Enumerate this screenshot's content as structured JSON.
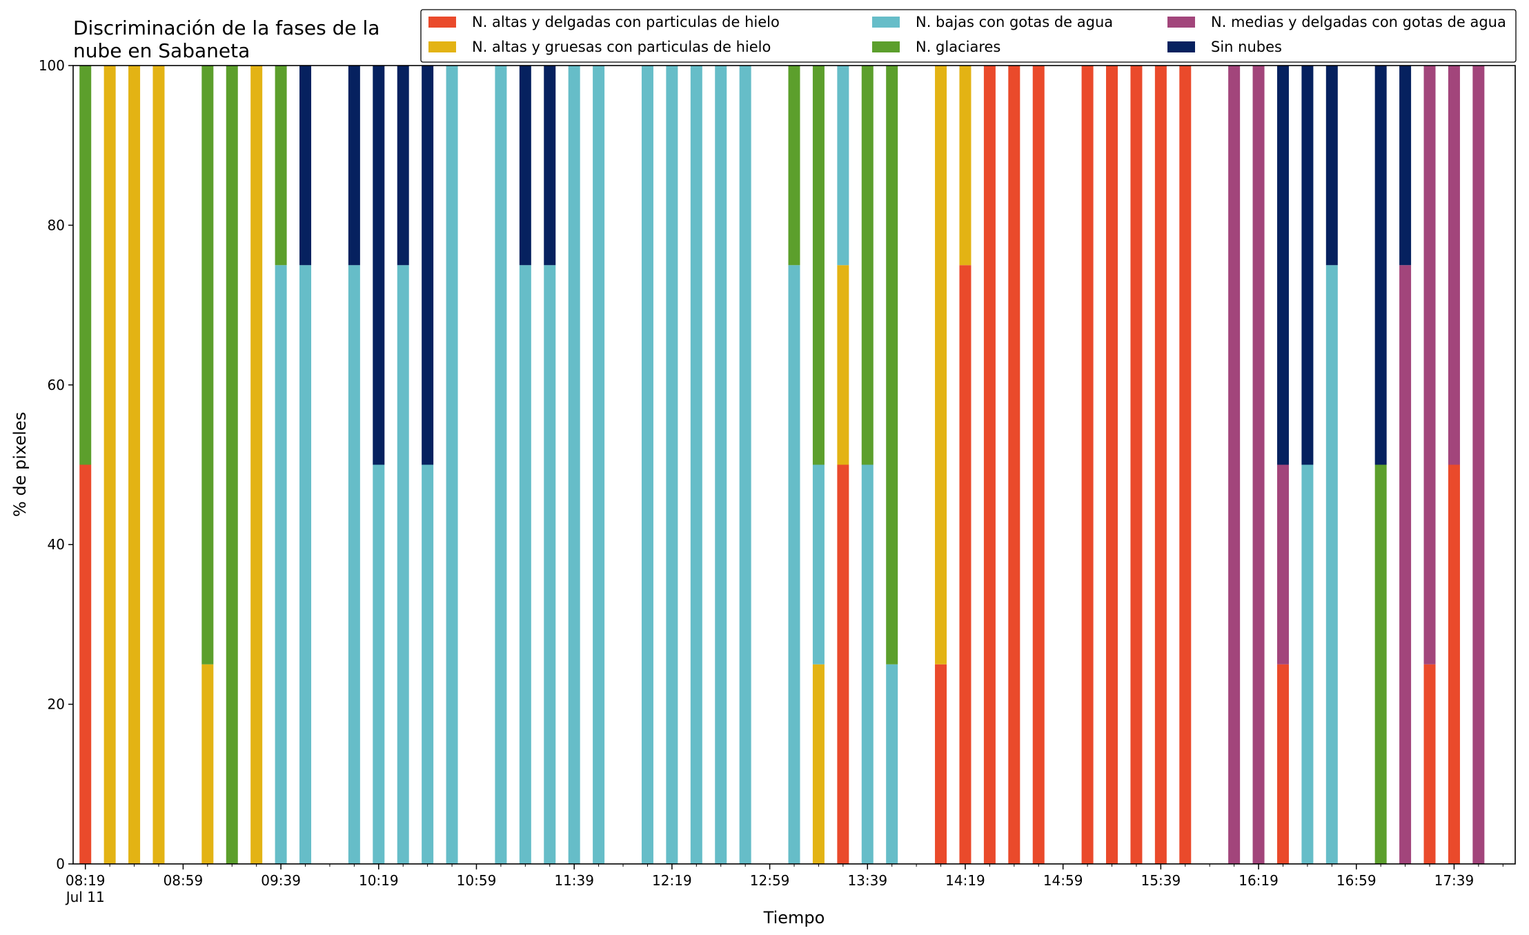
{
  "colors": {
    "N. altas y delgadas con particulas de hielo": "#ea4a2b",
    "N. altas y gruesas con particulas de hielo": "#e3b314",
    "N. bajas con gotas de agua": "#66bdc8",
    "N. glaciares": "#5c9f2c",
    "N. medias y delgadas con gotas de agua": "#a2457b",
    "Sin nubes": "#06215f"
  },
  "chart_data": {
    "type": "bar",
    "stacked": true,
    "title": "Discriminación de la fases de la\nnube en Sabaneta",
    "xlabel": "Tiempo",
    "ylabel": "% de pixeles",
    "ylim": [
      0,
      100
    ],
    "yticks": [
      0,
      20,
      40,
      60,
      80,
      100
    ],
    "xlim": [
      "08:14",
      "18:04"
    ],
    "xticks": [
      "08:19",
      "08:59",
      "09:39",
      "10:19",
      "10:59",
      "11:39",
      "12:19",
      "12:59",
      "13:39",
      "14:19",
      "14:59",
      "15:39",
      "16:19",
      "16:59",
      "17:39"
    ],
    "xtick_labels": [
      "08:19\nJul 11",
      "08:59",
      "09:39",
      "10:19",
      "10:59",
      "11:39",
      "12:19",
      "12:59",
      "13:39",
      "14:19",
      "14:59",
      "15:39",
      "16:19",
      "16:59",
      "17:39"
    ],
    "x_minor_tick_step_minutes": 10,
    "legend": {
      "placement": "top-right",
      "columns": 3
    },
    "grid": false,
    "series_order": [
      "N. altas y delgadas con particulas de hielo",
      "N. altas y gruesas con particulas de hielo",
      "N. bajas con gotas de agua",
      "N. glaciares",
      "N. medias y delgadas con gotas de agua",
      "Sin nubes"
    ],
    "x": [
      "08:19",
      "08:29",
      "08:39",
      "08:49",
      "09:09",
      "09:19",
      "09:29",
      "09:39",
      "09:49",
      "10:09",
      "10:19",
      "10:29",
      "10:39",
      "10:49",
      "11:09",
      "11:19",
      "11:29",
      "11:39",
      "11:49",
      "12:09",
      "12:19",
      "12:29",
      "12:39",
      "12:49",
      "13:09",
      "13:19",
      "13:29",
      "13:39",
      "13:49",
      "14:09",
      "14:19",
      "14:29",
      "14:39",
      "14:49",
      "15:09",
      "15:19",
      "15:29",
      "15:39",
      "15:49",
      "16:09",
      "16:19",
      "16:29",
      "16:39",
      "16:49",
      "17:09",
      "17:19",
      "17:29",
      "17:39",
      "17:49"
    ],
    "series": [
      {
        "name": "N. altas y delgadas con particulas de hielo",
        "values": [
          50,
          0,
          0,
          0,
          0,
          0,
          0,
          0,
          0,
          0,
          0,
          0,
          0,
          0,
          0,
          0,
          0,
          0,
          0,
          0,
          0,
          0,
          0,
          0,
          0,
          0,
          50,
          0,
          0,
          25,
          75,
          100,
          100,
          100,
          100,
          100,
          100,
          100,
          100,
          0,
          0,
          25,
          0,
          0,
          0,
          0,
          25,
          50,
          0
        ]
      },
      {
        "name": "N. altas y gruesas con particulas de hielo",
        "values": [
          0,
          100,
          100,
          100,
          25,
          0,
          100,
          0,
          0,
          0,
          0,
          0,
          0,
          0,
          0,
          0,
          0,
          0,
          0,
          0,
          0,
          0,
          0,
          0,
          0,
          25,
          25,
          0,
          0,
          75,
          25,
          0,
          0,
          0,
          0,
          0,
          0,
          0,
          0,
          0,
          0,
          0,
          0,
          0,
          0,
          0,
          0,
          0,
          0
        ]
      },
      {
        "name": "N. bajas con gotas de agua",
        "values": [
          0,
          0,
          0,
          0,
          0,
          0,
          0,
          75,
          75,
          75,
          50,
          75,
          50,
          100,
          100,
          75,
          75,
          100,
          100,
          100,
          100,
          100,
          100,
          100,
          75,
          25,
          25,
          50,
          25,
          0,
          0,
          0,
          0,
          0,
          0,
          0,
          0,
          0,
          0,
          0,
          0,
          0,
          50,
          75,
          0,
          0,
          0,
          0,
          0
        ]
      },
      {
        "name": "N. glaciares",
        "values": [
          50,
          0,
          0,
          0,
          75,
          100,
          0,
          25,
          0,
          0,
          0,
          0,
          0,
          0,
          0,
          0,
          0,
          0,
          0,
          0,
          0,
          0,
          0,
          0,
          25,
          50,
          0,
          50,
          75,
          0,
          0,
          0,
          0,
          0,
          0,
          0,
          0,
          0,
          0,
          0,
          0,
          0,
          0,
          0,
          50,
          0,
          0,
          0,
          0
        ]
      },
      {
        "name": "N. medias y delgadas con gotas de agua",
        "values": [
          0,
          0,
          0,
          0,
          0,
          0,
          0,
          0,
          0,
          0,
          0,
          0,
          0,
          0,
          0,
          0,
          0,
          0,
          0,
          0,
          0,
          0,
          0,
          0,
          0,
          0,
          0,
          0,
          0,
          0,
          0,
          0,
          0,
          0,
          0,
          0,
          0,
          0,
          0,
          100,
          100,
          25,
          0,
          0,
          0,
          75,
          75,
          50,
          100
        ]
      },
      {
        "name": "Sin nubes",
        "values": [
          0,
          0,
          0,
          0,
          0,
          0,
          0,
          0,
          25,
          25,
          50,
          25,
          50,
          0,
          0,
          25,
          25,
          0,
          0,
          0,
          0,
          0,
          0,
          0,
          0,
          0,
          0,
          0,
          0,
          0,
          0,
          0,
          0,
          0,
          0,
          0,
          0,
          0,
          0,
          0,
          0,
          50,
          50,
          25,
          50,
          25,
          0,
          0,
          0
        ]
      }
    ]
  }
}
